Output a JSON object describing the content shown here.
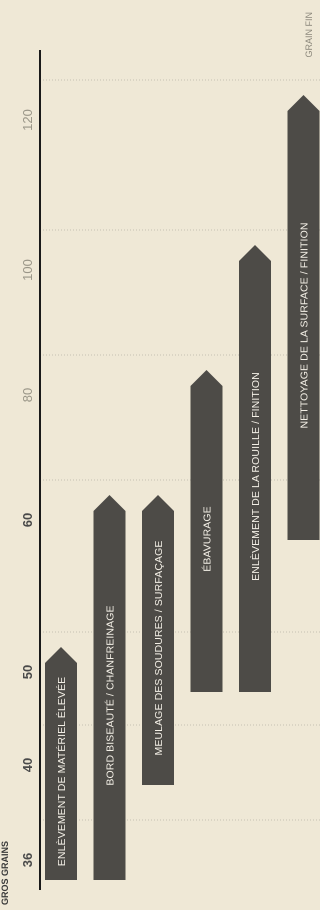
{
  "corner_top_label": "GRAIN FIN",
  "corner_bottom_label": "GROS GRAINS",
  "colors": {
    "background": "#efe8d6",
    "bar": "#4d4b47",
    "bar_text": "#f3efe6",
    "bold_tick": "#4a4a4a",
    "light_tick": "#9a9688"
  },
  "chart_data": {
    "type": "bar",
    "orientation": "horizontal-range",
    "axis_label": "",
    "ticks": [
      {
        "label": "36",
        "style": "bold"
      },
      {
        "label": "40",
        "style": "bold"
      },
      {
        "label": "50",
        "style": "bold"
      },
      {
        "label": "60",
        "style": "bold"
      },
      {
        "label": "80",
        "style": "light"
      },
      {
        "label": "100",
        "style": "light"
      },
      {
        "label": "120",
        "style": "light"
      }
    ],
    "series": [
      {
        "label": "ENLÈVEMENT DE MATÉRIEL ÉLEVÉE",
        "from": "36",
        "to": "50"
      },
      {
        "label": "BORD BISEAUTÉ / CHANFREINAGE",
        "from": "36",
        "to": "60"
      },
      {
        "label": "MEULAGE DES SOUDURES / SURFAÇAGE",
        "from": "40",
        "to": "60"
      },
      {
        "label": "ÉBAVURAGE",
        "from": "50",
        "to": "80"
      },
      {
        "label": "ENLÈVEMENT DE LA ROUILLE / FINITION",
        "from": "50",
        "to": "100"
      },
      {
        "label": "NETTOYAGE DE LA SURFACE / FINITION",
        "from": "60",
        "to": "120"
      }
    ],
    "grid": true
  }
}
